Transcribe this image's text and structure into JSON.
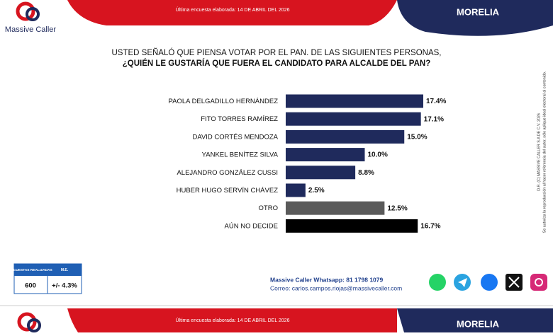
{
  "header": {
    "logo": "Massive Caller",
    "date": "Última encuesta elaborada: 14 DE ABRIL DEL 2026",
    "city": "MORELIA"
  },
  "chart_data": {
    "type": "bar",
    "orientation": "horizontal",
    "title": "USTED SEÑALÓ QUE PIENSA VOTAR POR EL PAN. DE LAS SIGUIENTES PERSONAS,",
    "subtitle": "¿QUIÉN LE GUSTARÍA QUE FUERA EL CANDIDATO PARA ALCALDE DEL PAN?",
    "categories": [
      "PAOLA DELGADILLO HERNÁNDEZ",
      "FITO TORRES RAMÍREZ",
      "DAVID CORTÉS MENDOZA",
      "YANKEL BENÍTEZ SILVA",
      "ALEJANDRO GONZÁLEZ CUSSI",
      "HUBER HUGO SERVÍN CHÁVEZ",
      "OTRO",
      "AÚN NO DECIDE"
    ],
    "values": [
      17.4,
      17.1,
      15.0,
      10.0,
      8.8,
      2.5,
      12.5,
      16.7
    ],
    "value_labels": [
      "17.4%",
      "17.1%",
      "15.0%",
      "10.0%",
      "8.8%",
      "2.5%",
      "12.5%",
      "16.7%"
    ],
    "colors": [
      "#1f2a5c",
      "#1f2a5c",
      "#1f2a5c",
      "#1f2a5c",
      "#1f2a5c",
      "#1f2a5c",
      "#5a5a5a",
      "#000000"
    ]
  },
  "survey": {
    "header_count": "ENCUESTAS REALIZADAS",
    "header_me": "M.E.",
    "count": "600",
    "me": "+/- 4.3%"
  },
  "contact": {
    "whatsapp": "Massive Caller Whatsapp: 81 1798 1079",
    "email": "Correo: carlos.campos.riojas@massivecaller.com"
  },
  "legal": {
    "copyright": "D.R. (C) MASSIVE CALLER S.A DE C.V. 2026",
    "notice": "Se autoriza la reproducción al hacer referencia del autor, sólo aplique ideal electoral al contenido."
  }
}
